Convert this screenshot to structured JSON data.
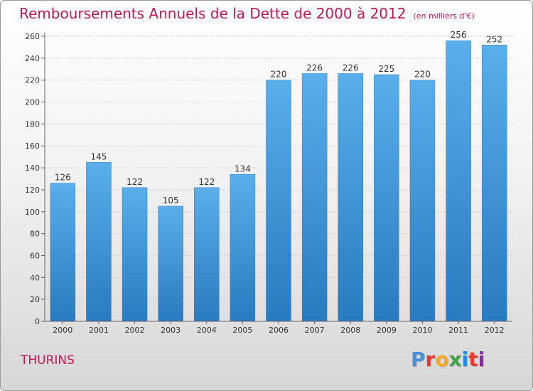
{
  "header": {
    "title": "Remboursements Annuels de la Dette de 2000 à 2012",
    "unit": "(en milliers d'€)"
  },
  "footer": {
    "commune": "THURINS",
    "logo": "Proxiti",
    "logo_colors": [
      "#4a90d9",
      "#e53935",
      "#f9a825",
      "#43a047",
      "#1e88e5",
      "#e53935",
      "#8e24aa"
    ]
  },
  "chart_data": {
    "type": "bar",
    "categories": [
      "2000",
      "2001",
      "2002",
      "2003",
      "2004",
      "2005",
      "2006",
      "2007",
      "2008",
      "2009",
      "2010",
      "2011",
      "2012"
    ],
    "values": [
      126,
      145,
      122,
      105,
      122,
      134,
      220,
      226,
      226,
      225,
      220,
      256,
      252
    ],
    "yticks": [
      0,
      20,
      40,
      60,
      80,
      100,
      120,
      140,
      160,
      180,
      200,
      220,
      240,
      260
    ],
    "ylim": [
      0,
      260
    ],
    "grid": true,
    "bar_color_top": "#5aaeea",
    "bar_color_bottom": "#2a7abf",
    "axis_color": "#666666",
    "grid_color": "#cccccc"
  }
}
